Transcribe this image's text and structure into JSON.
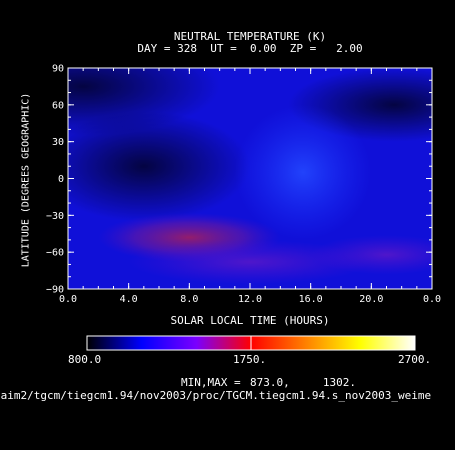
{
  "chart_data": {
    "type": "heatmap",
    "title": "NEUTRAL TEMPERATURE (K)",
    "subtitle": "DAY = 328  UT =  0.00  ZP =   2.00",
    "xlabel": "SOLAR LOCAL TIME (HOURS)",
    "ylabel": "LATITUDE (DEGREES GEOGRAPHIC)",
    "x_ticks": [
      "0.0",
      "4.0",
      "8.0",
      "12.0",
      "16.0",
      "20.0",
      "0.0"
    ],
    "y_ticks": [
      "90",
      "60",
      "30",
      "0",
      "-30",
      "-60",
      "-90"
    ],
    "xlim": [
      0,
      24
    ],
    "ylim": [
      -90,
      90
    ],
    "colorbar": {
      "min_label": "800.0",
      "mid_label": "1750.",
      "max_label": "2700.",
      "range": [
        800,
        2700
      ],
      "stops": [
        "#000000",
        "#0000ff",
        "#7a00ff",
        "#ff0000",
        "#ff8000",
        "#ffff00",
        "#ffffff"
      ]
    },
    "minmax_label": "MIN,MAX =",
    "minmax_values": "873.0,     1302.",
    "min": 873.0,
    "max": 1302.0,
    "features": [
      {
        "lt": 2.0,
        "lat": 25,
        "value": 880
      },
      {
        "lt": 5.0,
        "lat": -5,
        "value": 920
      },
      {
        "lt": 15.0,
        "lat": 0,
        "value": 1150
      },
      {
        "lt": 15.5,
        "lat": 20,
        "value": 1120
      },
      {
        "lt": 8.0,
        "lat": -45,
        "value": 1280
      },
      {
        "lt": 11.0,
        "lat": -65,
        "value": 1220
      },
      {
        "lt": 21.0,
        "lat": -60,
        "value": 1180
      }
    ],
    "filepath": "/aim2/tgcm/tiegcm1.94/nov2003/proc/TGCM.tiegcm1.94.s_nov2003_weime"
  }
}
